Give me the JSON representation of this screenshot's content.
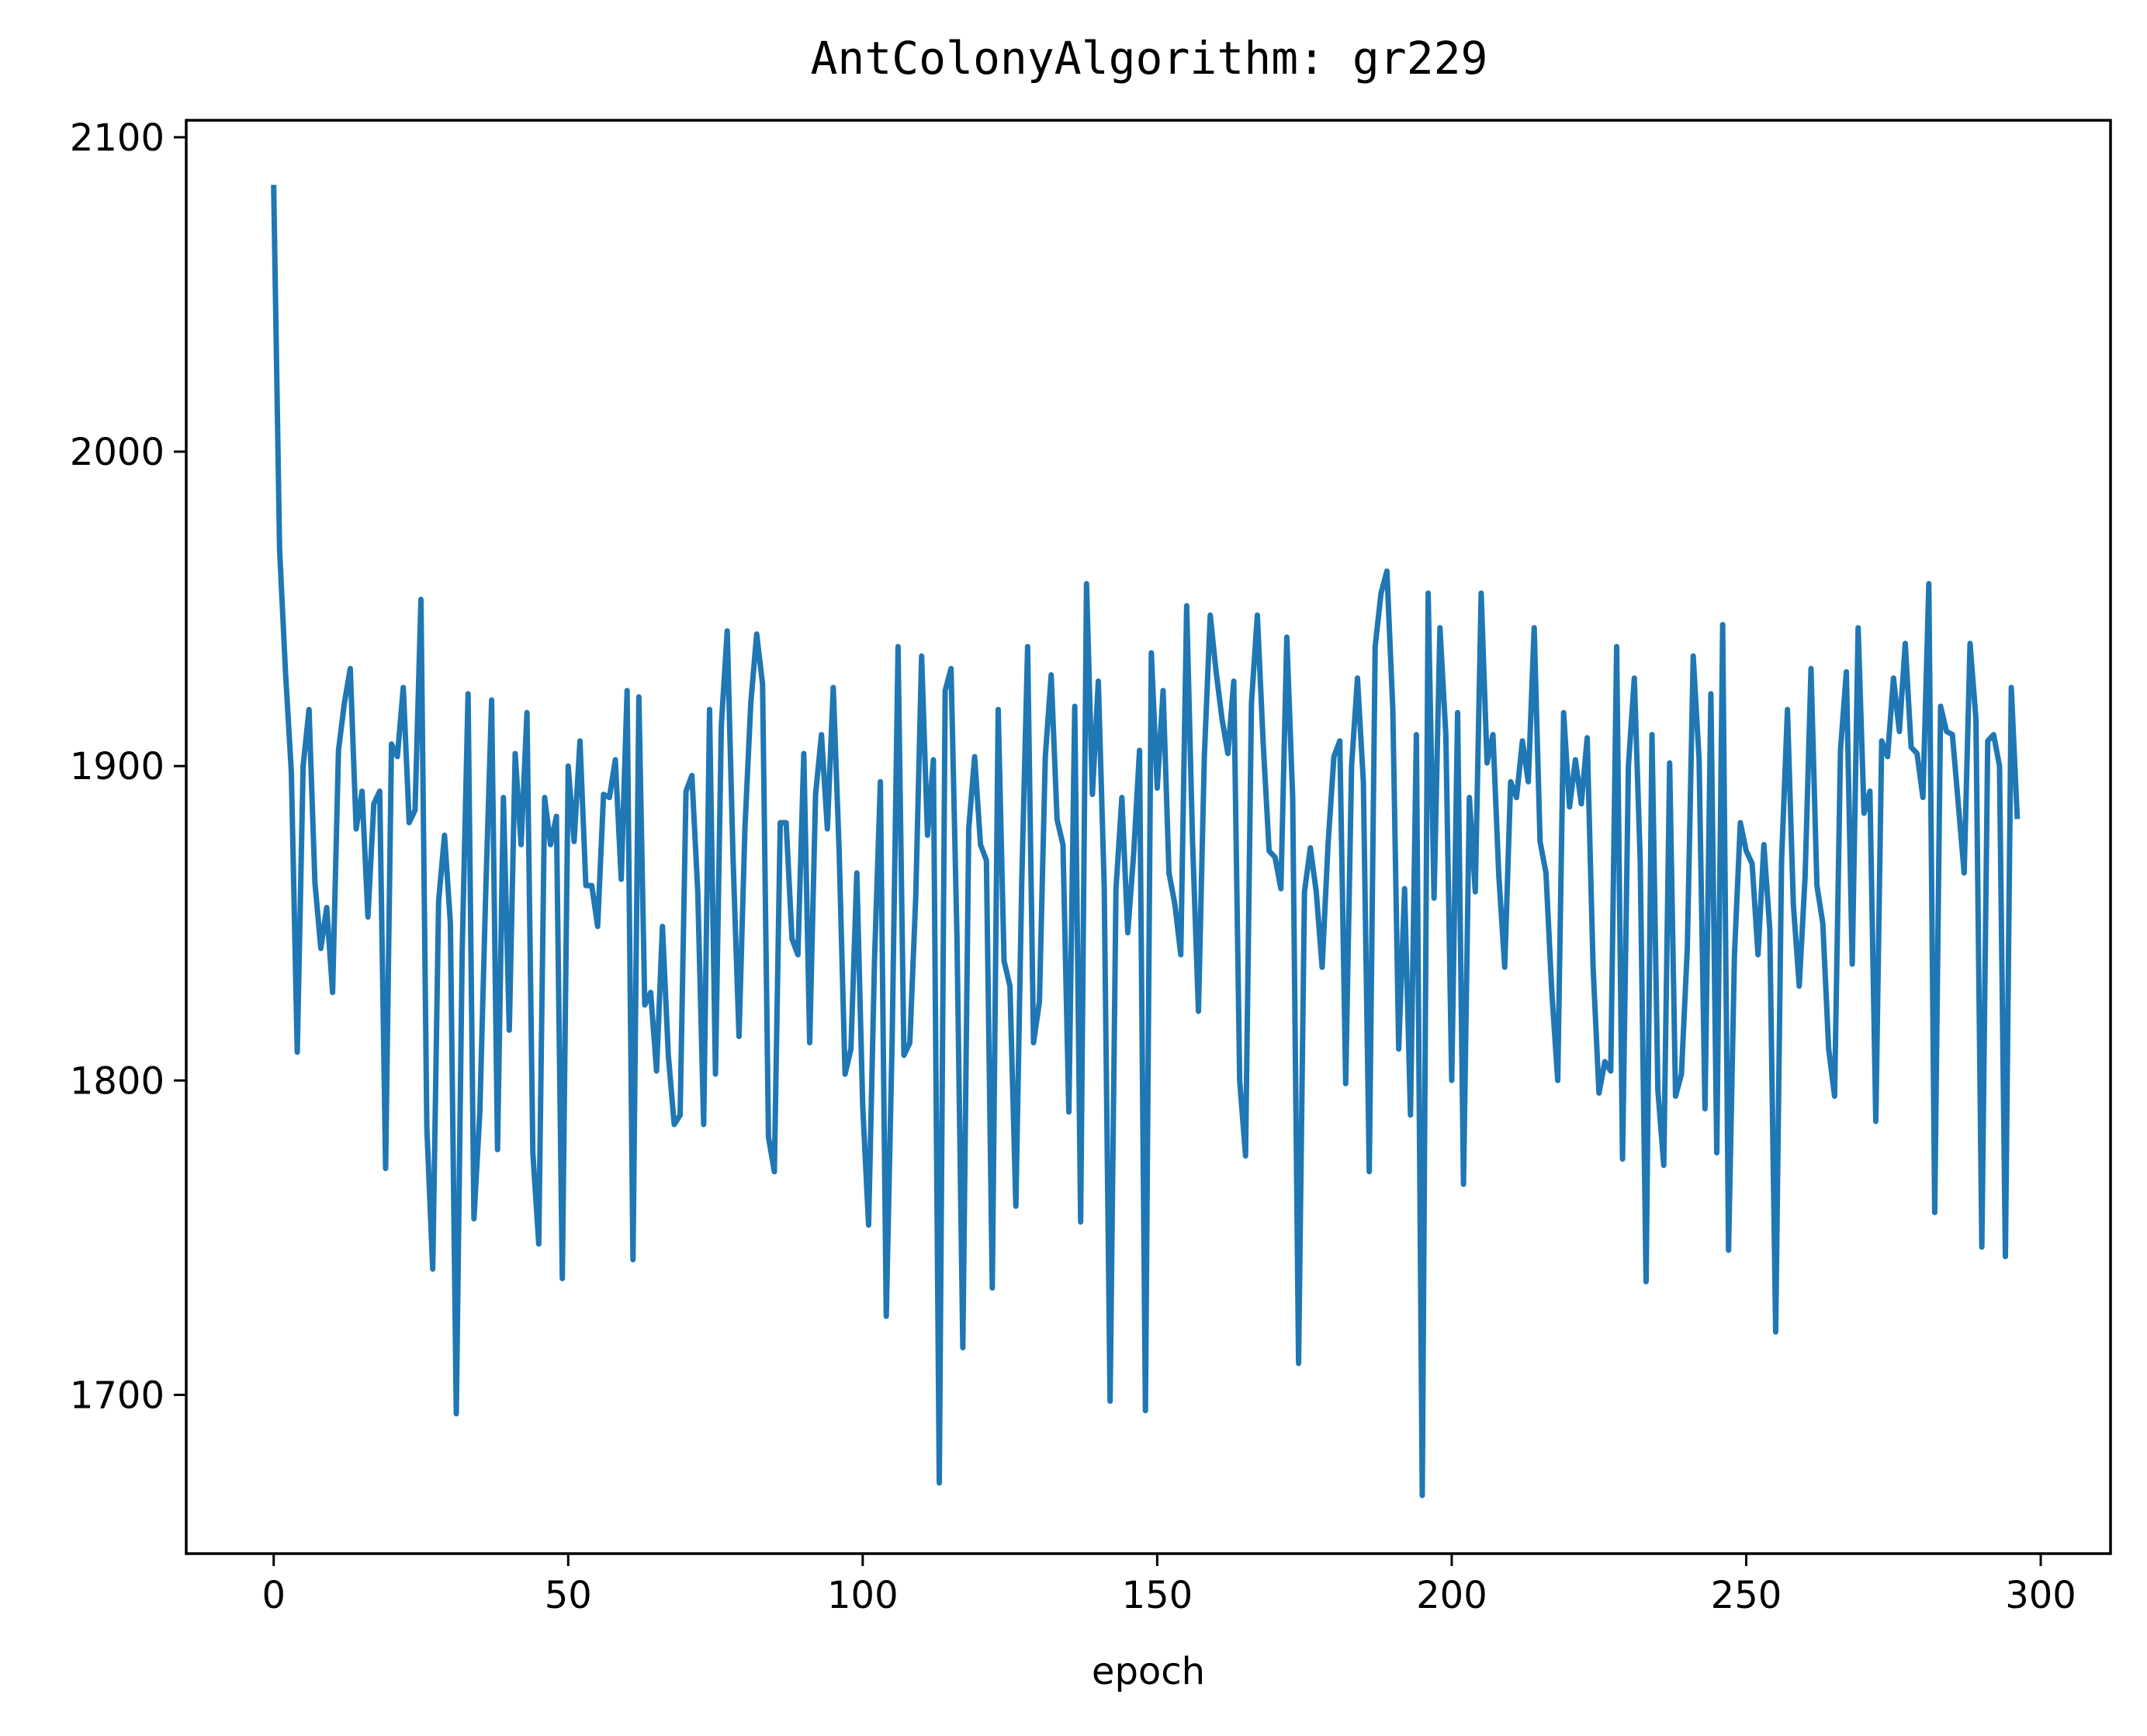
{
  "chart_data": {
    "type": "line",
    "title": "AntColonyAlgorithm: gr229",
    "xlabel": "epoch",
    "ylabel": "",
    "xlim": [
      -14.85,
      311.85
    ],
    "ylim": [
      1649.5,
      2105.4
    ],
    "xticks": [
      0,
      50,
      100,
      150,
      200,
      250,
      300
    ],
    "yticks": [
      1700,
      1800,
      1900,
      2000,
      2100
    ],
    "grid": false,
    "line_color": "#1f77b4",
    "series": [
      {
        "values": [
          2084,
          1969,
          1930,
          1898,
          1809,
          1900,
          1918,
          1863,
          1842,
          1855,
          1828,
          1905,
          1920,
          1931,
          1880,
          1892,
          1852,
          1888,
          1892,
          1772,
          1907,
          1903,
          1925,
          1882,
          1886,
          1953,
          1785,
          1740,
          1857,
          1878,
          1850,
          1694,
          1841,
          1923,
          1756,
          1790,
          1860,
          1921,
          1778,
          1890,
          1816,
          1904,
          1875,
          1917,
          1777,
          1748,
          1890,
          1875,
          1884,
          1737,
          1900,
          1876,
          1908,
          1862,
          1862,
          1849,
          1891,
          1890,
          1902,
          1864,
          1924,
          1743,
          1922,
          1824,
          1828,
          1803,
          1849,
          1808,
          1786,
          1789,
          1892,
          1897,
          1860,
          1786,
          1918,
          1802,
          1913,
          1943,
          1870,
          1814,
          1880,
          1920,
          1942,
          1926,
          1782,
          1771,
          1882,
          1882,
          1845,
          1840,
          1904,
          1812,
          1891,
          1910,
          1880,
          1925,
          1873,
          1802,
          1810,
          1866,
          1792,
          1754,
          1838,
          1895,
          1725,
          1813,
          1938,
          1808,
          1812,
          1858,
          1935,
          1878,
          1902,
          1672,
          1924,
          1931,
          1846,
          1715,
          1880,
          1903,
          1875,
          1870,
          1734,
          1918,
          1838,
          1830,
          1760,
          1863,
          1938,
          1812,
          1825,
          1903,
          1929,
          1883,
          1875,
          1790,
          1919,
          1755,
          1958,
          1891,
          1927,
          1862,
          1698,
          1861,
          1890,
          1847,
          1872,
          1905,
          1695,
          1936,
          1893,
          1924,
          1866,
          1856,
          1840,
          1951,
          1876,
          1822,
          1903,
          1948,
          1930,
          1915,
          1904,
          1927,
          1800,
          1776,
          1920,
          1948,
          1907,
          1873,
          1871,
          1861,
          1941,
          1890,
          1710,
          1860,
          1874,
          1860,
          1836,
          1875,
          1903,
          1908,
          1799,
          1900,
          1928,
          1895,
          1771,
          1938,
          1955,
          1962,
          1918,
          1810,
          1861,
          1789,
          1910,
          1668,
          1955,
          1858,
          1944,
          1910,
          1800,
          1917,
          1767,
          1890,
          1860,
          1955,
          1901,
          1910,
          1865,
          1836,
          1895,
          1890,
          1908,
          1895,
          1944,
          1876,
          1866,
          1828,
          1800,
          1917,
          1887,
          1902,
          1888,
          1909,
          1836,
          1796,
          1806,
          1803,
          1938,
          1775,
          1900,
          1928,
          1870,
          1736,
          1910,
          1797,
          1773,
          1901,
          1795,
          1802,
          1842,
          1935,
          1902,
          1791,
          1923,
          1777,
          1945,
          1746,
          1840,
          1882,
          1873,
          1869,
          1840,
          1875,
          1848,
          1720,
          1870,
          1918,
          1856,
          1830,
          1865,
          1931,
          1862,
          1850,
          1810,
          1795,
          1905,
          1930,
          1837,
          1944,
          1885,
          1892,
          1787,
          1908,
          1903,
          1928,
          1911,
          1939,
          1906,
          1904,
          1890,
          1958,
          1758,
          1919,
          1911,
          1910,
          1888,
          1866,
          1939,
          1915,
          1747,
          1908,
          1910,
          1900,
          1744,
          1925,
          1884
        ]
      }
    ]
  }
}
